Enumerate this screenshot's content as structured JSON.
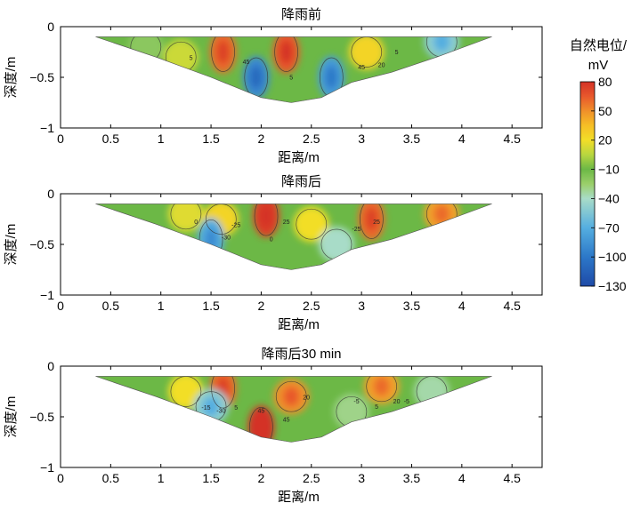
{
  "chart_data": [
    {
      "type": "heatmap",
      "title": "降雨前",
      "xlabel": "距离/m",
      "ylabel": "深度/m",
      "xlim": [
        0,
        4.8
      ],
      "ylim": [
        -1,
        0
      ],
      "xticks": [
        "0",
        "0.5",
        "1",
        "1.5",
        "2",
        "2.5",
        "3",
        "3.5",
        "4",
        "4.5"
      ],
      "yticks": [
        "0",
        "−0.5",
        "−1"
      ],
      "section_outline": [
        [
          0.35,
          -0.1
        ],
        [
          4.3,
          -0.1
        ],
        [
          3.75,
          -0.3
        ],
        [
          3.3,
          -0.45
        ],
        [
          2.9,
          -0.55
        ],
        [
          2.6,
          -0.7
        ],
        [
          2.3,
          -0.75
        ],
        [
          2.0,
          -0.7
        ],
        [
          1.5,
          -0.5
        ],
        [
          0.95,
          -0.3
        ]
      ],
      "anomalies": [
        {
          "x": 1.2,
          "y": -0.3,
          "value": 10
        },
        {
          "x": 1.62,
          "y": -0.25,
          "value": 60
        },
        {
          "x": 2.25,
          "y": -0.25,
          "value": 65
        },
        {
          "x": 3.05,
          "y": -0.25,
          "value": 25
        },
        {
          "x": 1.95,
          "y": -0.5,
          "value": -90
        },
        {
          "x": 2.7,
          "y": -0.5,
          "value": -80
        },
        {
          "x": 3.8,
          "y": -0.15,
          "value": -50
        },
        {
          "x": 0.85,
          "y": -0.2,
          "value": -20
        }
      ],
      "contour_labels": [
        {
          "x": 1.3,
          "y": -0.33,
          "text": "5"
        },
        {
          "x": 1.85,
          "y": -0.37,
          "text": "45"
        },
        {
          "x": 2.3,
          "y": -0.52,
          "text": "5"
        },
        {
          "x": 3.0,
          "y": -0.42,
          "text": "45"
        },
        {
          "x": 3.2,
          "y": -0.4,
          "text": "20"
        },
        {
          "x": 3.35,
          "y": -0.27,
          "text": "5"
        }
      ]
    },
    {
      "type": "heatmap",
      "title": "降雨后",
      "xlabel": "距离/m",
      "ylabel": "深度/m",
      "xlim": [
        0,
        4.8
      ],
      "ylim": [
        -1,
        0
      ],
      "xticks": [
        "0",
        "0.5",
        "1",
        "1.5",
        "2",
        "2.5",
        "3",
        "3.5",
        "4",
        "4.5"
      ],
      "yticks": [
        "0",
        "−0.5",
        "−1"
      ],
      "section_outline": [
        [
          0.35,
          -0.1
        ],
        [
          4.3,
          -0.1
        ],
        [
          3.75,
          -0.3
        ],
        [
          3.3,
          -0.45
        ],
        [
          2.9,
          -0.55
        ],
        [
          2.6,
          -0.7
        ],
        [
          2.3,
          -0.75
        ],
        [
          2.0,
          -0.7
        ],
        [
          1.5,
          -0.5
        ],
        [
          0.95,
          -0.3
        ]
      ],
      "anomalies": [
        {
          "x": 1.25,
          "y": -0.2,
          "value": 15
        },
        {
          "x": 1.6,
          "y": -0.25,
          "value": 25
        },
        {
          "x": 2.05,
          "y": -0.22,
          "value": 75
        },
        {
          "x": 2.5,
          "y": -0.3,
          "value": 20
        },
        {
          "x": 3.1,
          "y": -0.25,
          "value": 60
        },
        {
          "x": 3.8,
          "y": -0.2,
          "value": 45
        },
        {
          "x": 1.5,
          "y": -0.45,
          "value": -70
        },
        {
          "x": 2.75,
          "y": -0.5,
          "value": -40
        }
      ],
      "contour_labels": [
        {
          "x": 1.35,
          "y": -0.3,
          "text": "0"
        },
        {
          "x": 1.65,
          "y": -0.45,
          "text": "-30"
        },
        {
          "x": 1.75,
          "y": -0.33,
          "text": "-25"
        },
        {
          "x": 2.25,
          "y": -0.3,
          "text": "25"
        },
        {
          "x": 2.1,
          "y": -0.47,
          "text": "0"
        },
        {
          "x": 2.95,
          "y": -0.37,
          "text": "-25"
        },
        {
          "x": 3.15,
          "y": -0.3,
          "text": "25"
        }
      ]
    },
    {
      "type": "heatmap",
      "title": "降雨后30 min",
      "xlabel": "距离/m",
      "ylabel": "深度/m",
      "xlim": [
        0,
        4.8
      ],
      "ylim": [
        -1,
        0
      ],
      "xticks": [
        "0",
        "0.5",
        "1",
        "1.5",
        "2",
        "2.5",
        "3",
        "3.5",
        "4",
        "4.5"
      ],
      "yticks": [
        "0",
        "−0.5",
        "−1"
      ],
      "section_outline": [
        [
          0.35,
          -0.1
        ],
        [
          4.3,
          -0.1
        ],
        [
          3.75,
          -0.3
        ],
        [
          3.3,
          -0.45
        ],
        [
          2.9,
          -0.55
        ],
        [
          2.6,
          -0.7
        ],
        [
          2.3,
          -0.75
        ],
        [
          2.0,
          -0.7
        ],
        [
          1.5,
          -0.5
        ],
        [
          0.95,
          -0.3
        ]
      ],
      "anomalies": [
        {
          "x": 1.25,
          "y": -0.25,
          "value": 20
        },
        {
          "x": 1.62,
          "y": -0.22,
          "value": 60
        },
        {
          "x": 2.0,
          "y": -0.6,
          "value": 80
        },
        {
          "x": 2.3,
          "y": -0.3,
          "value": 50
        },
        {
          "x": 3.2,
          "y": -0.2,
          "value": 45
        },
        {
          "x": 1.5,
          "y": -0.4,
          "value": -50
        },
        {
          "x": 2.9,
          "y": -0.45,
          "value": -30
        },
        {
          "x": 3.7,
          "y": -0.25,
          "value": -35
        }
      ],
      "contour_labels": [
        {
          "x": 1.45,
          "y": -0.43,
          "text": "-15"
        },
        {
          "x": 1.6,
          "y": -0.46,
          "text": "-30"
        },
        {
          "x": 1.75,
          "y": -0.43,
          "text": "5"
        },
        {
          "x": 2.0,
          "y": -0.46,
          "text": "45"
        },
        {
          "x": 2.25,
          "y": -0.55,
          "text": "45"
        },
        {
          "x": 2.45,
          "y": -0.33,
          "text": "20"
        },
        {
          "x": 2.95,
          "y": -0.37,
          "text": "-5"
        },
        {
          "x": 3.15,
          "y": -0.42,
          "text": "5"
        },
        {
          "x": 3.35,
          "y": -0.37,
          "text": "20"
        },
        {
          "x": 3.45,
          "y": -0.37,
          "text": "-5"
        }
      ]
    }
  ],
  "colorbar": {
    "title_line1": "自然电位/",
    "title_line2": "mV",
    "range": [
      -130,
      80
    ],
    "ticks": [
      "80",
      "50",
      "20",
      "−10",
      "−40",
      "−70",
      "−100",
      "−130"
    ],
    "tick_values": [
      80,
      50,
      20,
      -10,
      -40,
      -70,
      -100,
      -130
    ],
    "stops": [
      {
        "v": -130,
        "color": "#1f4aa8"
      },
      {
        "v": -100,
        "color": "#2c78c8"
      },
      {
        "v": -70,
        "color": "#55aee0"
      },
      {
        "v": -40,
        "color": "#a8dcc8"
      },
      {
        "v": -25,
        "color": "#9bcf6a"
      },
      {
        "v": -10,
        "color": "#6cb846"
      },
      {
        "v": 5,
        "color": "#b8d640"
      },
      {
        "v": 20,
        "color": "#f2de28"
      },
      {
        "v": 35,
        "color": "#f6bf26"
      },
      {
        "v": 50,
        "color": "#f0902a"
      },
      {
        "v": 65,
        "color": "#e8582c"
      },
      {
        "v": 80,
        "color": "#d43226"
      }
    ]
  }
}
